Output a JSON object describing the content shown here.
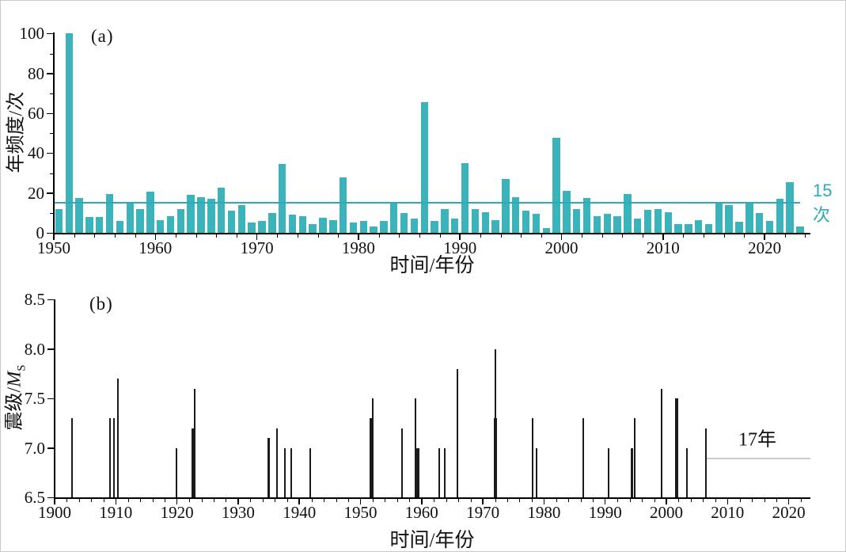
{
  "panels": {
    "a": {
      "label": "(a)",
      "ylabel": "年频度/次",
      "xlabel": "时间/年份",
      "threshold_label": "15次"
    },
    "b": {
      "label": "(b)",
      "ylabel_prefix": "震级/",
      "magnitude_symbol": "M",
      "magnitude_subscript": "S",
      "ylabel_full": "震级/MS",
      "xlabel": "时间/年份",
      "gap_label": "17年"
    }
  },
  "colors": {
    "bar": "#3ab3ba",
    "threshold": "#2fa9b4",
    "threshold_text": "#2fa9b4",
    "stem": "#1b1b1b",
    "axis": "#000000",
    "gap_line": "#cccccc",
    "text": "#111111",
    "background": "#ffffff"
  },
  "chart_data": [
    {
      "type": "bar",
      "panel": "a",
      "title": "",
      "xlabel": "时间/年份",
      "ylabel": "年频度/次",
      "ylim": [
        0,
        100
      ],
      "xlim": [
        1950,
        2024.5
      ],
      "yticks": [
        0,
        20,
        40,
        60,
        80,
        100
      ],
      "xticks": [
        1950,
        1960,
        1970,
        1980,
        1990,
        2000,
        2010,
        2020
      ],
      "grid": false,
      "years": [
        1950,
        1951,
        1952,
        1953,
        1954,
        1955,
        1956,
        1957,
        1958,
        1959,
        1960,
        1961,
        1962,
        1963,
        1964,
        1965,
        1966,
        1967,
        1968,
        1969,
        1970,
        1971,
        1972,
        1973,
        1974,
        1975,
        1976,
        1977,
        1978,
        1979,
        1980,
        1981,
        1982,
        1983,
        1984,
        1985,
        1986,
        1987,
        1988,
        1989,
        1990,
        1991,
        1992,
        1993,
        1994,
        1995,
        1996,
        1997,
        1998,
        1999,
        2000,
        2001,
        2002,
        2003,
        2004,
        2005,
        2006,
        2007,
        2008,
        2009,
        2010,
        2011,
        2012,
        2013,
        2014,
        2015,
        2016,
        2017,
        2018,
        2019,
        2020,
        2021,
        2022,
        2023
      ],
      "values": [
        12,
        100,
        17.5,
        8,
        8,
        19.5,
        6,
        15,
        12,
        20.5,
        6.5,
        8.5,
        12,
        19,
        18,
        17,
        22.5,
        11,
        14,
        5,
        6,
        10,
        34.5,
        9,
        8.5,
        4.5,
        7.5,
        6.5,
        28,
        5,
        6,
        3,
        6,
        15,
        10,
        7,
        65.5,
        6,
        12,
        7,
        35,
        12,
        10.5,
        6.5,
        27,
        18,
        11,
        9.5,
        2.5,
        47.5,
        21,
        12,
        17.5,
        8.5,
        9.5,
        8.5,
        19.5,
        7,
        11.5,
        12,
        10.5,
        4.5,
        4.5,
        6.5,
        4.5,
        15.5,
        14,
        5.5,
        15,
        10,
        6,
        17,
        25.5,
        3
      ],
      "reference_line": {
        "value": 15,
        "label": "15次"
      }
    },
    {
      "type": "stem",
      "panel": "b",
      "title": "",
      "xlabel": "时间/年份",
      "ylabel": "震级/MS",
      "ylim": [
        6.5,
        8.5
      ],
      "xlim": [
        1900,
        2023.5
      ],
      "yticks": [
        6.5,
        7.0,
        7.5,
        8.0,
        8.5
      ],
      "xticks": [
        1900,
        1910,
        1920,
        1930,
        1940,
        1950,
        1960,
        1970,
        1980,
        1990,
        2000,
        2010,
        2020
      ],
      "grid": false,
      "events": [
        {
          "year": 1902.9,
          "ms": 7.3
        },
        {
          "year": 1909.1,
          "ms": 7.3
        },
        {
          "year": 1909.7,
          "ms": 7.3
        },
        {
          "year": 1910.4,
          "ms": 7.7
        },
        {
          "year": 1919.9,
          "ms": 7.0
        },
        {
          "year": 1922.6,
          "ms": 7.2,
          "w": 3.5
        },
        {
          "year": 1922.9,
          "ms": 7.6
        },
        {
          "year": 1935.0,
          "ms": 7.1,
          "w": 3.5
        },
        {
          "year": 1936.4,
          "ms": 7.2
        },
        {
          "year": 1937.7,
          "ms": 7.0
        },
        {
          "year": 1938.7,
          "ms": 7.0
        },
        {
          "year": 1941.8,
          "ms": 7.0
        },
        {
          "year": 1951.7,
          "ms": 7.3,
          "w": 3.5
        },
        {
          "year": 1952.0,
          "ms": 7.5
        },
        {
          "year": 1956.8,
          "ms": 7.2
        },
        {
          "year": 1959.0,
          "ms": 7.5
        },
        {
          "year": 1959.4,
          "ms": 7.0,
          "w": 3.5
        },
        {
          "year": 1962.9,
          "ms": 7.0
        },
        {
          "year": 1963.8,
          "ms": 7.0
        },
        {
          "year": 1965.9,
          "ms": 7.8
        },
        {
          "year": 1972.0,
          "ms": 8.0
        },
        {
          "year": 1972.1,
          "ms": 7.3,
          "w": 4
        },
        {
          "year": 1978.2,
          "ms": 7.3
        },
        {
          "year": 1978.8,
          "ms": 7.0
        },
        {
          "year": 1986.4,
          "ms": 7.3
        },
        {
          "year": 1990.5,
          "ms": 7.0
        },
        {
          "year": 1994.4,
          "ms": 7.0,
          "w": 3.5
        },
        {
          "year": 1994.8,
          "ms": 7.3
        },
        {
          "year": 1999.2,
          "ms": 7.6
        },
        {
          "year": 2001.7,
          "ms": 7.5,
          "w": 4.5
        },
        {
          "year": 2003.4,
          "ms": 7.0
        },
        {
          "year": 2006.5,
          "ms": 7.2
        }
      ],
      "annotation": {
        "label": "17年",
        "line_start_year": 2006.5,
        "line_end_year": 2023.5,
        "line_level": 6.9
      }
    }
  ]
}
